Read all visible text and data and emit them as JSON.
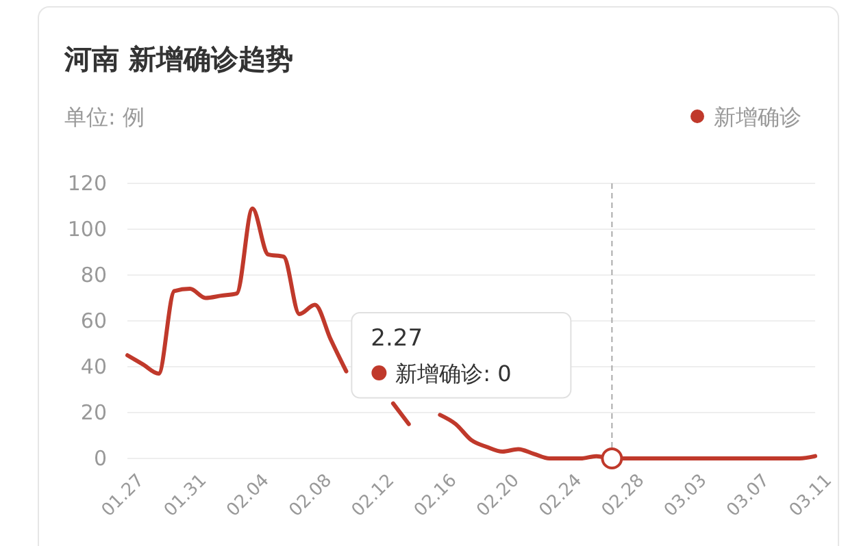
{
  "chart_data": {
    "type": "line",
    "title": "河南 新增确诊趋势",
    "ylabel": "单位: 例",
    "x": [
      "--01-27",
      "--01-28",
      "--01-29",
      "--01-30",
      "--01-31",
      "--02-01",
      "--02-02",
      "--02-03",
      "--02-04",
      "--02-05",
      "--02-06",
      "--02-07",
      "--02-08",
      "--02-09",
      "--02-10",
      "--02-11",
      "--02-12",
      "--02-13",
      "--02-14",
      "--02-15",
      "--02-16",
      "--02-17",
      "--02-18",
      "--02-19",
      "--02-20",
      "--02-21",
      "--02-22",
      "--02-23",
      "--02-24",
      "--02-25",
      "--02-26",
      "--02-27",
      "--02-28",
      "--02-29",
      "--03-01",
      "--03-02",
      "--03-03",
      "--03-04",
      "--03-05",
      "--03-06",
      "--03-07",
      "--03-08",
      "--03-09",
      "--03-10",
      "--03-11"
    ],
    "series": [
      {
        "name": "新增确诊",
        "color": "#c0392b",
        "values": [
          45,
          41,
          37,
          73,
          74,
          70,
          71,
          72,
          109,
          89,
          88,
          63,
          67,
          52,
          38,
          null,
          null,
          24,
          15,
          null,
          19,
          15,
          8,
          5,
          3,
          4,
          2,
          0,
          0,
          0,
          1,
          0,
          0,
          0,
          0,
          0,
          0,
          0,
          0,
          0,
          0,
          0,
          0,
          0,
          1
        ]
      }
    ],
    "xlim": [
      "--01-27",
      "--03-11"
    ],
    "xticks": [
      {
        "value": "--01-27",
        "label": "01.27"
      },
      {
        "value": "--01-31",
        "label": "01.31"
      },
      {
        "value": "--02-04",
        "label": "02.04"
      },
      {
        "value": "--02-08",
        "label": "02.08"
      },
      {
        "value": "--02-12",
        "label": "02.12"
      },
      {
        "value": "--02-16",
        "label": "02.16"
      },
      {
        "value": "--02-20",
        "label": "02.20"
      },
      {
        "value": "--02-24",
        "label": "02.24"
      },
      {
        "value": "--02-28",
        "label": "02.28"
      },
      {
        "value": "--03-03",
        "label": "03.03"
      },
      {
        "value": "--03-07",
        "label": "03.07"
      },
      {
        "value": "--03-11",
        "label": "03.11"
      }
    ],
    "ylim": [
      0,
      120
    ],
    "yticks": [
      0,
      20,
      40,
      60,
      80,
      100,
      120
    ],
    "grid": "y",
    "legend": "top right",
    "ref_lines": [
      {
        "axis": "x",
        "value": "--02-27",
        "color": "#aaaaaa",
        "line_style": "dashed"
      }
    ],
    "annotations": [
      "2.27",
      "新增确诊: 0"
    ]
  }
}
